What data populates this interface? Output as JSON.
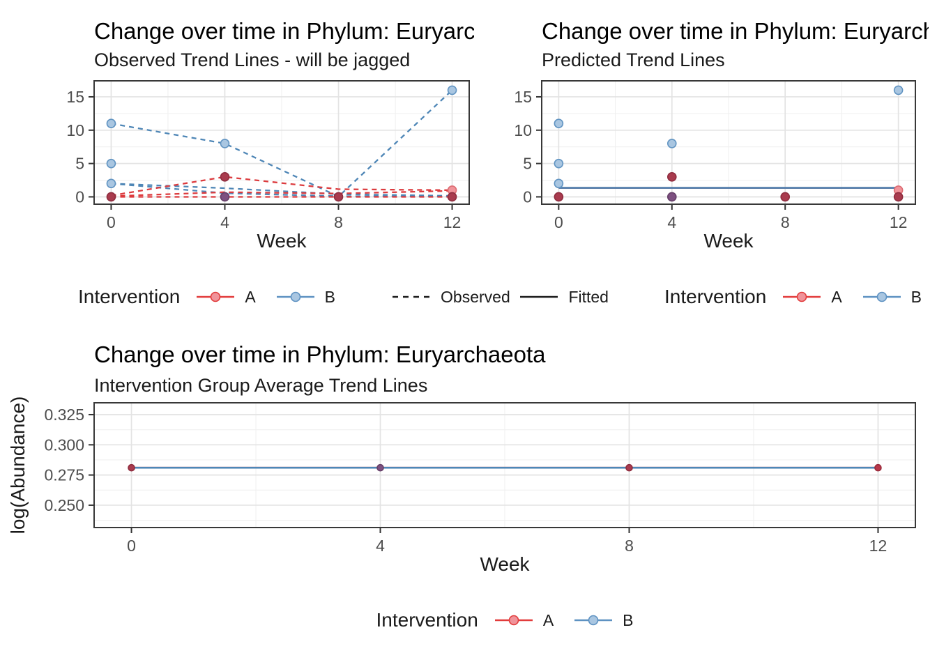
{
  "chart_data": [
    {
      "type": "line",
      "title": "Change over time in Phylum: Euryarchaeota",
      "subtitle": "Observed Trend Lines - will be jagged",
      "xlabel": "Week",
      "ylabel": "",
      "xlim": [
        -0.6,
        12.6
      ],
      "ylim": [
        -1.1,
        17.4
      ],
      "xticks": [
        0,
        4,
        8,
        12
      ],
      "xtick_labels": [
        "0",
        "4",
        "8",
        "12"
      ],
      "yticks": [
        0,
        5,
        10,
        15
      ],
      "ytick_labels": [
        "0",
        "5",
        "10",
        "15"
      ],
      "xminor": [
        2,
        6,
        10
      ],
      "yminor": [
        2.5,
        7.5,
        12.5
      ],
      "grid": true,
      "legend_position": "bottom",
      "marker_r": 6,
      "series": [
        {
          "group": "B",
          "color": "blue",
          "dash": true,
          "points": [
            [
              0,
              11
            ],
            [
              4,
              8
            ],
            [
              8,
              0.05
            ],
            [
              12,
              16
            ]
          ]
        },
        {
          "group": "B",
          "color": "blue",
          "dash": true,
          "points": [
            [
              0,
              2
            ],
            [
              4,
              1.3
            ],
            [
              8,
              0.4
            ],
            [
              12,
              0.15
            ]
          ]
        },
        {
          "group": "B",
          "color": "blue",
          "dash": true,
          "points": [
            [
              0,
              2
            ],
            [
              4,
              0.55
            ],
            [
              8,
              0.1
            ],
            [
              12,
              0.05
            ]
          ]
        },
        {
          "group": "A",
          "color": "red",
          "dash": true,
          "points": [
            [
              0,
              0.2
            ],
            [
              4,
              3
            ],
            [
              8,
              1.15
            ],
            [
              12,
              1
            ]
          ]
        },
        {
          "group": "A",
          "color": "red",
          "dash": true,
          "points": [
            [
              0,
              0.1
            ],
            [
              4,
              0.7
            ],
            [
              8,
              0.5
            ],
            [
              12,
              0.9
            ]
          ]
        },
        {
          "group": "A",
          "color": "red",
          "dash": true,
          "points": [
            [
              0,
              0
            ],
            [
              4,
              0
            ],
            [
              8,
              0
            ],
            [
              12,
              0
            ]
          ]
        }
      ],
      "markers": [
        {
          "x": 0,
          "y": 11,
          "c": "blue"
        },
        {
          "x": 0,
          "y": 5,
          "c": "blue"
        },
        {
          "x": 0,
          "y": 2,
          "c": "blue"
        },
        {
          "x": 0,
          "y": 0,
          "c": "dark_red"
        },
        {
          "x": 4,
          "y": 8,
          "c": "blue"
        },
        {
          "x": 4,
          "y": 3,
          "c": "dark_red"
        },
        {
          "x": 4,
          "y": 0,
          "c": "purple"
        },
        {
          "x": 8,
          "y": 0,
          "c": "dark_red"
        },
        {
          "x": 12,
          "y": 16,
          "c": "blue"
        },
        {
          "x": 12,
          "y": 1,
          "c": "light_red"
        },
        {
          "x": 12,
          "y": 0,
          "c": "dark_red"
        }
      ]
    },
    {
      "type": "scatter",
      "title": "Change over time in Phylum: Euryarchaeota",
      "subtitle": "Predicted Trend Lines",
      "xlabel": "Week",
      "ylabel": "",
      "xlim": [
        -0.6,
        12.6
      ],
      "ylim": [
        -1.1,
        17.4
      ],
      "xticks": [
        0,
        4,
        8,
        12
      ],
      "xtick_labels": [
        "0",
        "4",
        "8",
        "12"
      ],
      "yticks": [
        0,
        5,
        10,
        15
      ],
      "ytick_labels": [
        "0",
        "5",
        "10",
        "15"
      ],
      "xminor": [
        2,
        6,
        10
      ],
      "yminor": [
        2.5,
        7.5,
        12.5
      ],
      "grid": true,
      "legend_position": "bottom",
      "marker_r": 6,
      "series": [
        {
          "group": "A",
          "color": "red",
          "dash": false,
          "points": [
            [
              0,
              1.35
            ],
            [
              12,
              1.35
            ]
          ]
        },
        {
          "group": "B",
          "color": "blue",
          "dash": false,
          "points": [
            [
              0,
              1.35
            ],
            [
              12,
              1.35
            ]
          ]
        }
      ],
      "markers": [
        {
          "x": 0,
          "y": 11,
          "c": "blue"
        },
        {
          "x": 0,
          "y": 5,
          "c": "blue"
        },
        {
          "x": 0,
          "y": 2,
          "c": "blue"
        },
        {
          "x": 0,
          "y": 0,
          "c": "dark_red"
        },
        {
          "x": 4,
          "y": 8,
          "c": "blue"
        },
        {
          "x": 4,
          "y": 3,
          "c": "dark_red"
        },
        {
          "x": 4,
          "y": 0,
          "c": "purple"
        },
        {
          "x": 8,
          "y": 0,
          "c": "dark_red"
        },
        {
          "x": 12,
          "y": 16,
          "c": "blue"
        },
        {
          "x": 12,
          "y": 1,
          "c": "light_red"
        },
        {
          "x": 12,
          "y": 0,
          "c": "dark_red"
        }
      ]
    },
    {
      "type": "line",
      "title": "Change over time in Phylum: Euryarchaeota",
      "subtitle": "Intervention Group Average Trend Lines",
      "xlabel": "Week",
      "ylabel": "log(Abundance)",
      "xlim": [
        -0.6,
        12.6
      ],
      "ylim": [
        0.2315,
        0.3348
      ],
      "xticks": [
        0,
        4,
        8,
        12
      ],
      "xtick_labels": [
        "0",
        "4",
        "8",
        "12"
      ],
      "yticks": [
        0.25,
        0.275,
        0.3,
        0.325
      ],
      "ytick_labels": [
        "0.250",
        "0.275",
        "0.300",
        "0.325"
      ],
      "xminor": [
        2,
        6,
        10
      ],
      "yminor": [
        0.2375,
        0.2625,
        0.2875,
        0.3125
      ],
      "grid": true,
      "legend_position": "bottom",
      "marker_r": 4.5,
      "series": [
        {
          "group": "A",
          "color": "red",
          "dash": false,
          "points": [
            [
              0,
              0.281
            ],
            [
              12,
              0.281
            ]
          ]
        },
        {
          "group": "B",
          "color": "blue",
          "dash": false,
          "points": [
            [
              0,
              0.281
            ],
            [
              12,
              0.281
            ]
          ]
        }
      ],
      "markers": [
        {
          "x": 0,
          "y": 0.281,
          "c": "dark_red"
        },
        {
          "x": 4,
          "y": 0.281,
          "c": "purple"
        },
        {
          "x": 8,
          "y": 0.281,
          "c": "dark_red"
        },
        {
          "x": 12,
          "y": 0.281,
          "c": "avg_red"
        }
      ]
    }
  ],
  "legends": {
    "observed": {
      "title": "Intervention",
      "item_a": "A",
      "item_b": "B",
      "linetype_label": "Observed"
    },
    "predicted": {
      "fitted_label": "Fitted",
      "title": "Intervention",
      "item_a": "A",
      "item_b": "B"
    },
    "average": {
      "title": "Intervention",
      "item_a": "A",
      "item_b": "B"
    }
  },
  "palette": {
    "line_red": "#DC3B3E",
    "line_blue": "#4E86B6",
    "legend_red": "#E23C3C",
    "legend_blue": "#5E92C2",
    "legend_black": "#1A1A1A",
    "point_blue_fill": "#A9C6E1",
    "point_blue_stroke": "#6194C2",
    "point_dark_red_fill": "#A93B4E",
    "point_dark_red_stroke": "#8F2D3F",
    "point_purple_fill": "#7D5080",
    "point_purple_stroke": "#653F68",
    "point_light_red_fill": "#F0939A",
    "point_light_red_stroke": "#DD6B72",
    "point_avg_red_fill": "#B8384A",
    "point_avg_red_stroke": "#9A2B3C",
    "grid_major": "#E3E3E3",
    "grid_minor": "#F0F0F0",
    "panel_border": "#383838",
    "tick_color": "#333333",
    "tick_label": "#4D4D4D",
    "title_color": "#000000",
    "text_color": "#1A1A1A",
    "background": "#FFFFFF"
  }
}
